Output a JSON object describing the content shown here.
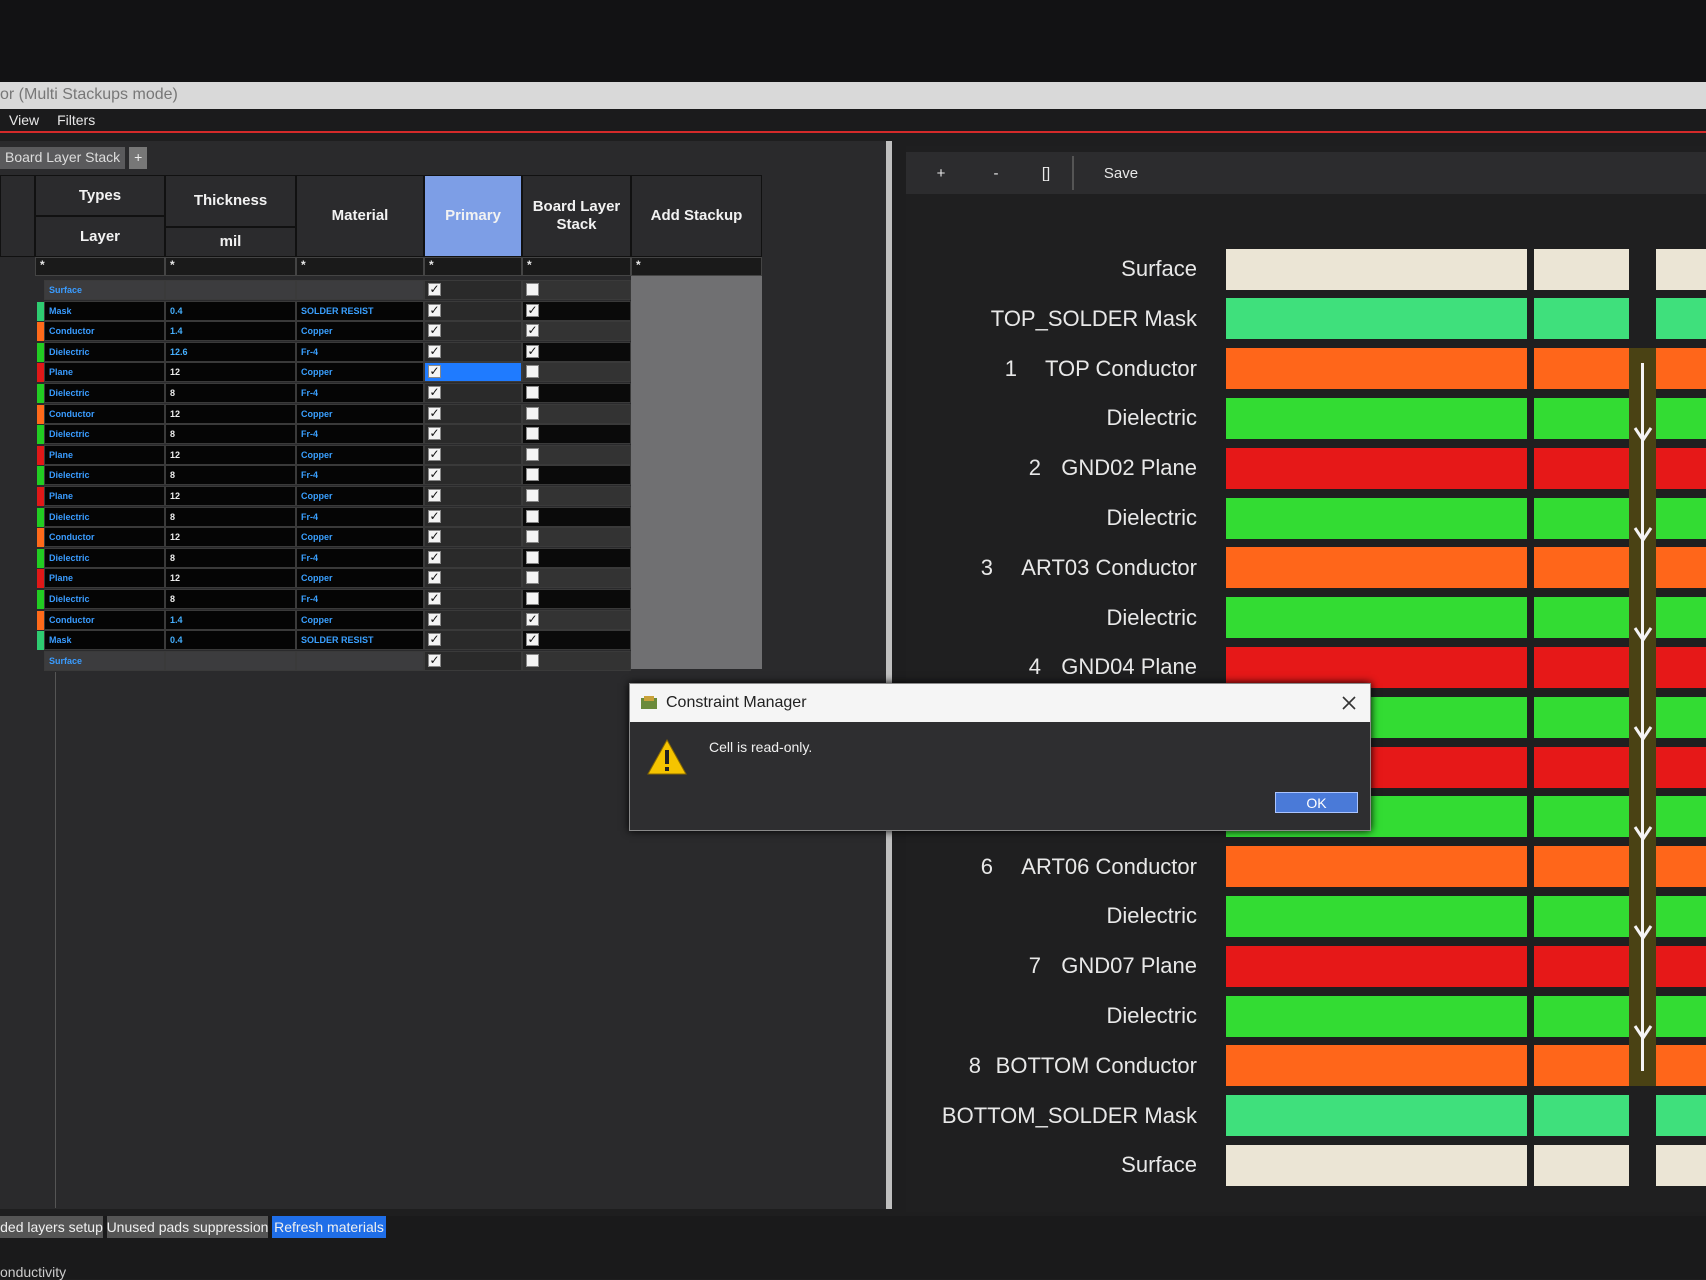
{
  "window": {
    "title": "or (Multi Stackups mode)",
    "menu": [
      "View",
      "Filters"
    ]
  },
  "tabs": [
    "Board Layer Stack",
    "+"
  ],
  "table": {
    "headers": {
      "types": "Types",
      "layer": "Layer",
      "thickness": "Thickness",
      "unit": "mil",
      "material": "Material",
      "primary": "Primary",
      "board": "Board Layer Stack",
      "add": "Add Stackup"
    },
    "filter": "*",
    "type_colors": {
      "Mask": "#2ecc71",
      "Conductor": "#ff6a1a",
      "Dielectric": "#22cc22",
      "Plane": "#e01818"
    },
    "rows": [
      {
        "type": "Surface",
        "primary": true,
        "board": false
      },
      {
        "type": "Mask",
        "thickness": 0.4,
        "material": "SOLDER RESIST",
        "primary": true,
        "board": true
      },
      {
        "type": "Conductor",
        "thickness": 1.4,
        "material": "Copper",
        "primary": true,
        "board": true
      },
      {
        "type": "Dielectric",
        "thickness": 12.6,
        "material": "Fr-4",
        "primary": true,
        "board": true
      },
      {
        "type": "Plane",
        "thickness": 12,
        "material": "Copper",
        "primary": true,
        "board": false,
        "selected": true
      },
      {
        "type": "Dielectric",
        "thickness": 8,
        "material": "Fr-4",
        "primary": true,
        "board": false
      },
      {
        "type": "Conductor",
        "thickness": 12,
        "material": "Copper",
        "primary": true,
        "board": false
      },
      {
        "type": "Dielectric",
        "thickness": 8,
        "material": "Fr-4",
        "primary": true,
        "board": false
      },
      {
        "type": "Plane",
        "thickness": 12,
        "material": "Copper",
        "primary": true,
        "board": false
      },
      {
        "type": "Dielectric",
        "thickness": 8,
        "material": "Fr-4",
        "primary": true,
        "board": false
      },
      {
        "type": "Plane",
        "thickness": 12,
        "material": "Copper",
        "primary": true,
        "board": false
      },
      {
        "type": "Dielectric",
        "thickness": 8,
        "material": "Fr-4",
        "primary": true,
        "board": false
      },
      {
        "type": "Conductor",
        "thickness": 12,
        "material": "Copper",
        "primary": true,
        "board": false
      },
      {
        "type": "Dielectric",
        "thickness": 8,
        "material": "Fr-4",
        "primary": true,
        "board": false
      },
      {
        "type": "Plane",
        "thickness": 12,
        "material": "Copper",
        "primary": true,
        "board": false
      },
      {
        "type": "Dielectric",
        "thickness": 8,
        "material": "Fr-4",
        "primary": true,
        "board": false
      },
      {
        "type": "Conductor",
        "thickness": 1.4,
        "material": "Copper",
        "primary": true,
        "board": true
      },
      {
        "type": "Mask",
        "thickness": 0.4,
        "material": "SOLDER RESIST",
        "primary": true,
        "board": true
      },
      {
        "type": "Surface",
        "primary": true,
        "board": false
      }
    ]
  },
  "toolbar": [
    "+",
    "-",
    "[]",
    "Save"
  ],
  "stack": {
    "kind_colors": {
      "surface": "#ebe5d5",
      "mask": "#3fe07c",
      "conductor": "#ff661a",
      "dielectric": "#33dc33",
      "plane": "#e61818"
    },
    "layers": [
      {
        "label": "Surface",
        "kind": "surface"
      },
      {
        "label": "TOP_SOLDER Mask",
        "kind": "mask"
      },
      {
        "number": "1",
        "label": "TOP Conductor",
        "kind": "conductor"
      },
      {
        "label": "Dielectric",
        "kind": "dielectric"
      },
      {
        "number": "2",
        "label": "GND02 Plane",
        "kind": "plane"
      },
      {
        "label": "Dielectric",
        "kind": "dielectric"
      },
      {
        "number": "3",
        "label": "ART03 Conductor",
        "kind": "conductor"
      },
      {
        "label": "Dielectric",
        "kind": "dielectric"
      },
      {
        "number": "4",
        "label": "GND04 Plane",
        "kind": "plane"
      },
      {
        "kind": "dielectric"
      },
      {
        "kind": "plane"
      },
      {
        "kind": "dielectric"
      },
      {
        "number": "6",
        "label": "ART06 Conductor",
        "kind": "conductor"
      },
      {
        "label": "Dielectric",
        "kind": "dielectric"
      },
      {
        "number": "7",
        "label": "GND07 Plane",
        "kind": "plane"
      },
      {
        "label": "Dielectric",
        "kind": "dielectric"
      },
      {
        "number": "8",
        "label": "BOTTOM Conductor",
        "kind": "conductor"
      },
      {
        "label": "BOTTOM_SOLDER Mask",
        "kind": "mask"
      },
      {
        "label": "Surface",
        "kind": "surface"
      }
    ]
  },
  "dialog": {
    "title": "Constraint Manager",
    "message": "Cell is read-only.",
    "button": "OK"
  },
  "bottom_buttons": [
    "ded layers setup",
    "Unused pads suppression",
    "Refresh materials"
  ],
  "status": "onductivity"
}
